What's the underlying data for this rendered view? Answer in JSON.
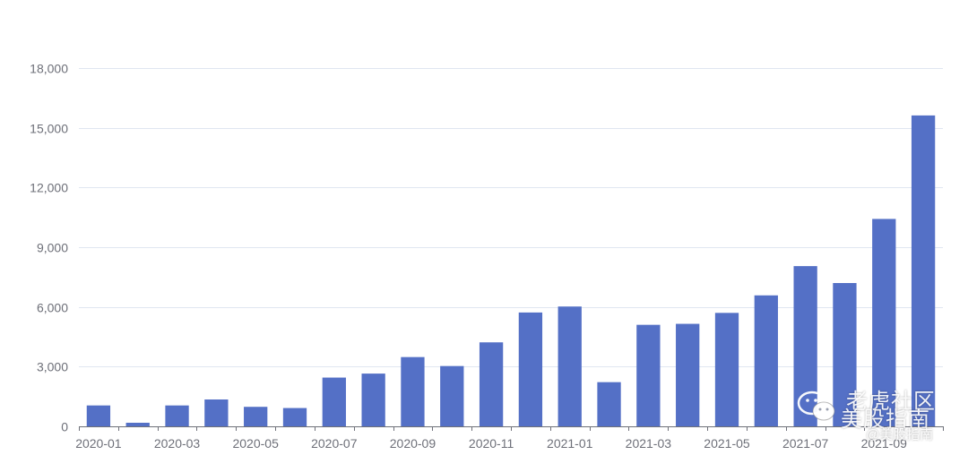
{
  "chart_data": {
    "type": "bar",
    "categories": [
      "2020-01",
      "2020-02",
      "2020-03",
      "2020-04",
      "2020-05",
      "2020-06",
      "2020-07",
      "2020-08",
      "2020-09",
      "2020-10",
      "2020-11",
      "2020-12",
      "2021-01",
      "2021-02",
      "2021-03",
      "2021-04",
      "2021-05",
      "2021-06",
      "2021-07",
      "2021-08",
      "2021-09",
      "2021-10"
    ],
    "x_tick_labels": [
      "2020-01",
      "2020-03",
      "2020-05",
      "2020-07",
      "2020-09",
      "2020-11",
      "2021-01",
      "2021-03",
      "2021-05",
      "2021-07",
      "2021-09"
    ],
    "values": [
      1050,
      180,
      1050,
      1350,
      980,
      920,
      2450,
      2650,
      3480,
      3030,
      4220,
      5720,
      6020,
      2220,
      5100,
      5150,
      5700,
      6580,
      8050,
      7200,
      10420,
      15620
    ],
    "ylim": [
      0,
      18000
    ],
    "y_ticks": [
      0,
      3000,
      6000,
      9000,
      12000,
      15000,
      18000
    ],
    "y_tick_labels": [
      "0",
      "3,000",
      "6,000",
      "9,000",
      "12,000",
      "15,000",
      "18,000"
    ],
    "title": "",
    "xlabel": "",
    "ylabel": "",
    "grid": true,
    "legend": "none",
    "colors": {
      "bar": "#5470c6",
      "grid": "#e0e6f1",
      "axis": "#6e7079",
      "text": "#6e7079"
    }
  },
  "watermark": {
    "line1": "老虎社区",
    "line2": "美股指南",
    "line3": "@美股指南",
    "icon": "wechat-icon"
  }
}
